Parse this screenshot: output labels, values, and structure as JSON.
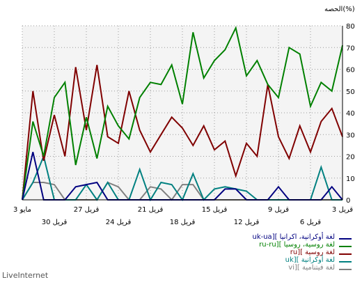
{
  "chart_data": {
    "type": "line",
    "ylabel": "الحصه(%)",
    "ylim": [
      0,
      80
    ],
    "y_ticks": [
      0,
      10,
      20,
      30,
      40,
      50,
      60,
      70,
      80
    ],
    "x_ticks_upper": [
      {
        "i": 0,
        "label": "3 قريل"
      },
      {
        "i": 3,
        "label": "6 قريل"
      },
      {
        "i": 6,
        "label": "9 قريل"
      },
      {
        "i": 9,
        "label": "12 قريل"
      },
      {
        "i": 12,
        "label": "15 قريل"
      },
      {
        "i": 15,
        "label": "18 قريل"
      },
      {
        "i": 18,
        "label": "21 قريل"
      },
      {
        "i": 21,
        "label": "24 قريل"
      },
      {
        "i": 24,
        "label": "27 قريل"
      },
      {
        "i": 27,
        "label": "30 قريل"
      },
      {
        "i": 30,
        "label": "3 مايو"
      }
    ],
    "series": [
      {
        "name": "لغة أوكرانية، اكرانيا ][uk-ua",
        "color": "#000080",
        "values": [
          0,
          6,
          0,
          0,
          0,
          0,
          6,
          0,
          0,
          0,
          5,
          5,
          0,
          0,
          0,
          0,
          0,
          0,
          0,
          0,
          0,
          0,
          0,
          8,
          7,
          6,
          0,
          0,
          0,
          22,
          0
        ]
      },
      {
        "name": "لغة روسية، روسيا ][ru-ru",
        "color": "#008000",
        "values": [
          71,
          50,
          54,
          43,
          67,
          70,
          47,
          53,
          64,
          57,
          79,
          69,
          64,
          56,
          77,
          44,
          62,
          53,
          54,
          47,
          28,
          34,
          43,
          19,
          38,
          16,
          54,
          47,
          20,
          36,
          0
        ]
      },
      {
        "name": "لغة روسية ][ru",
        "color": "#800000",
        "values": [
          29,
          42,
          36,
          22,
          34,
          19,
          29,
          53,
          20,
          26,
          11,
          27,
          23,
          34,
          25,
          33,
          38,
          30,
          22,
          32,
          50,
          26,
          29,
          62,
          32,
          61,
          20,
          39,
          18,
          50,
          0
        ]
      },
      {
        "name": "لغة أوكرانية ][uk",
        "color": "#008080",
        "values": [
          0,
          0,
          15,
          0,
          0,
          0,
          0,
          0,
          0,
          4,
          5,
          6,
          5,
          0,
          12,
          0,
          7,
          8,
          0,
          14,
          0,
          0,
          8,
          0,
          7,
          0,
          0,
          0,
          20,
          8,
          0
        ]
      },
      {
        "name": "لغة فيتنامية ][vi",
        "color": "#808080",
        "values": [
          0,
          0,
          0,
          0,
          0,
          0,
          0,
          0,
          0,
          0,
          0,
          0,
          0,
          0,
          7,
          7,
          0,
          5,
          6,
          0,
          0,
          6,
          8,
          0,
          0,
          0,
          0,
          7,
          8,
          8,
          0
        ]
      }
    ]
  },
  "brand": "LiveInternet"
}
